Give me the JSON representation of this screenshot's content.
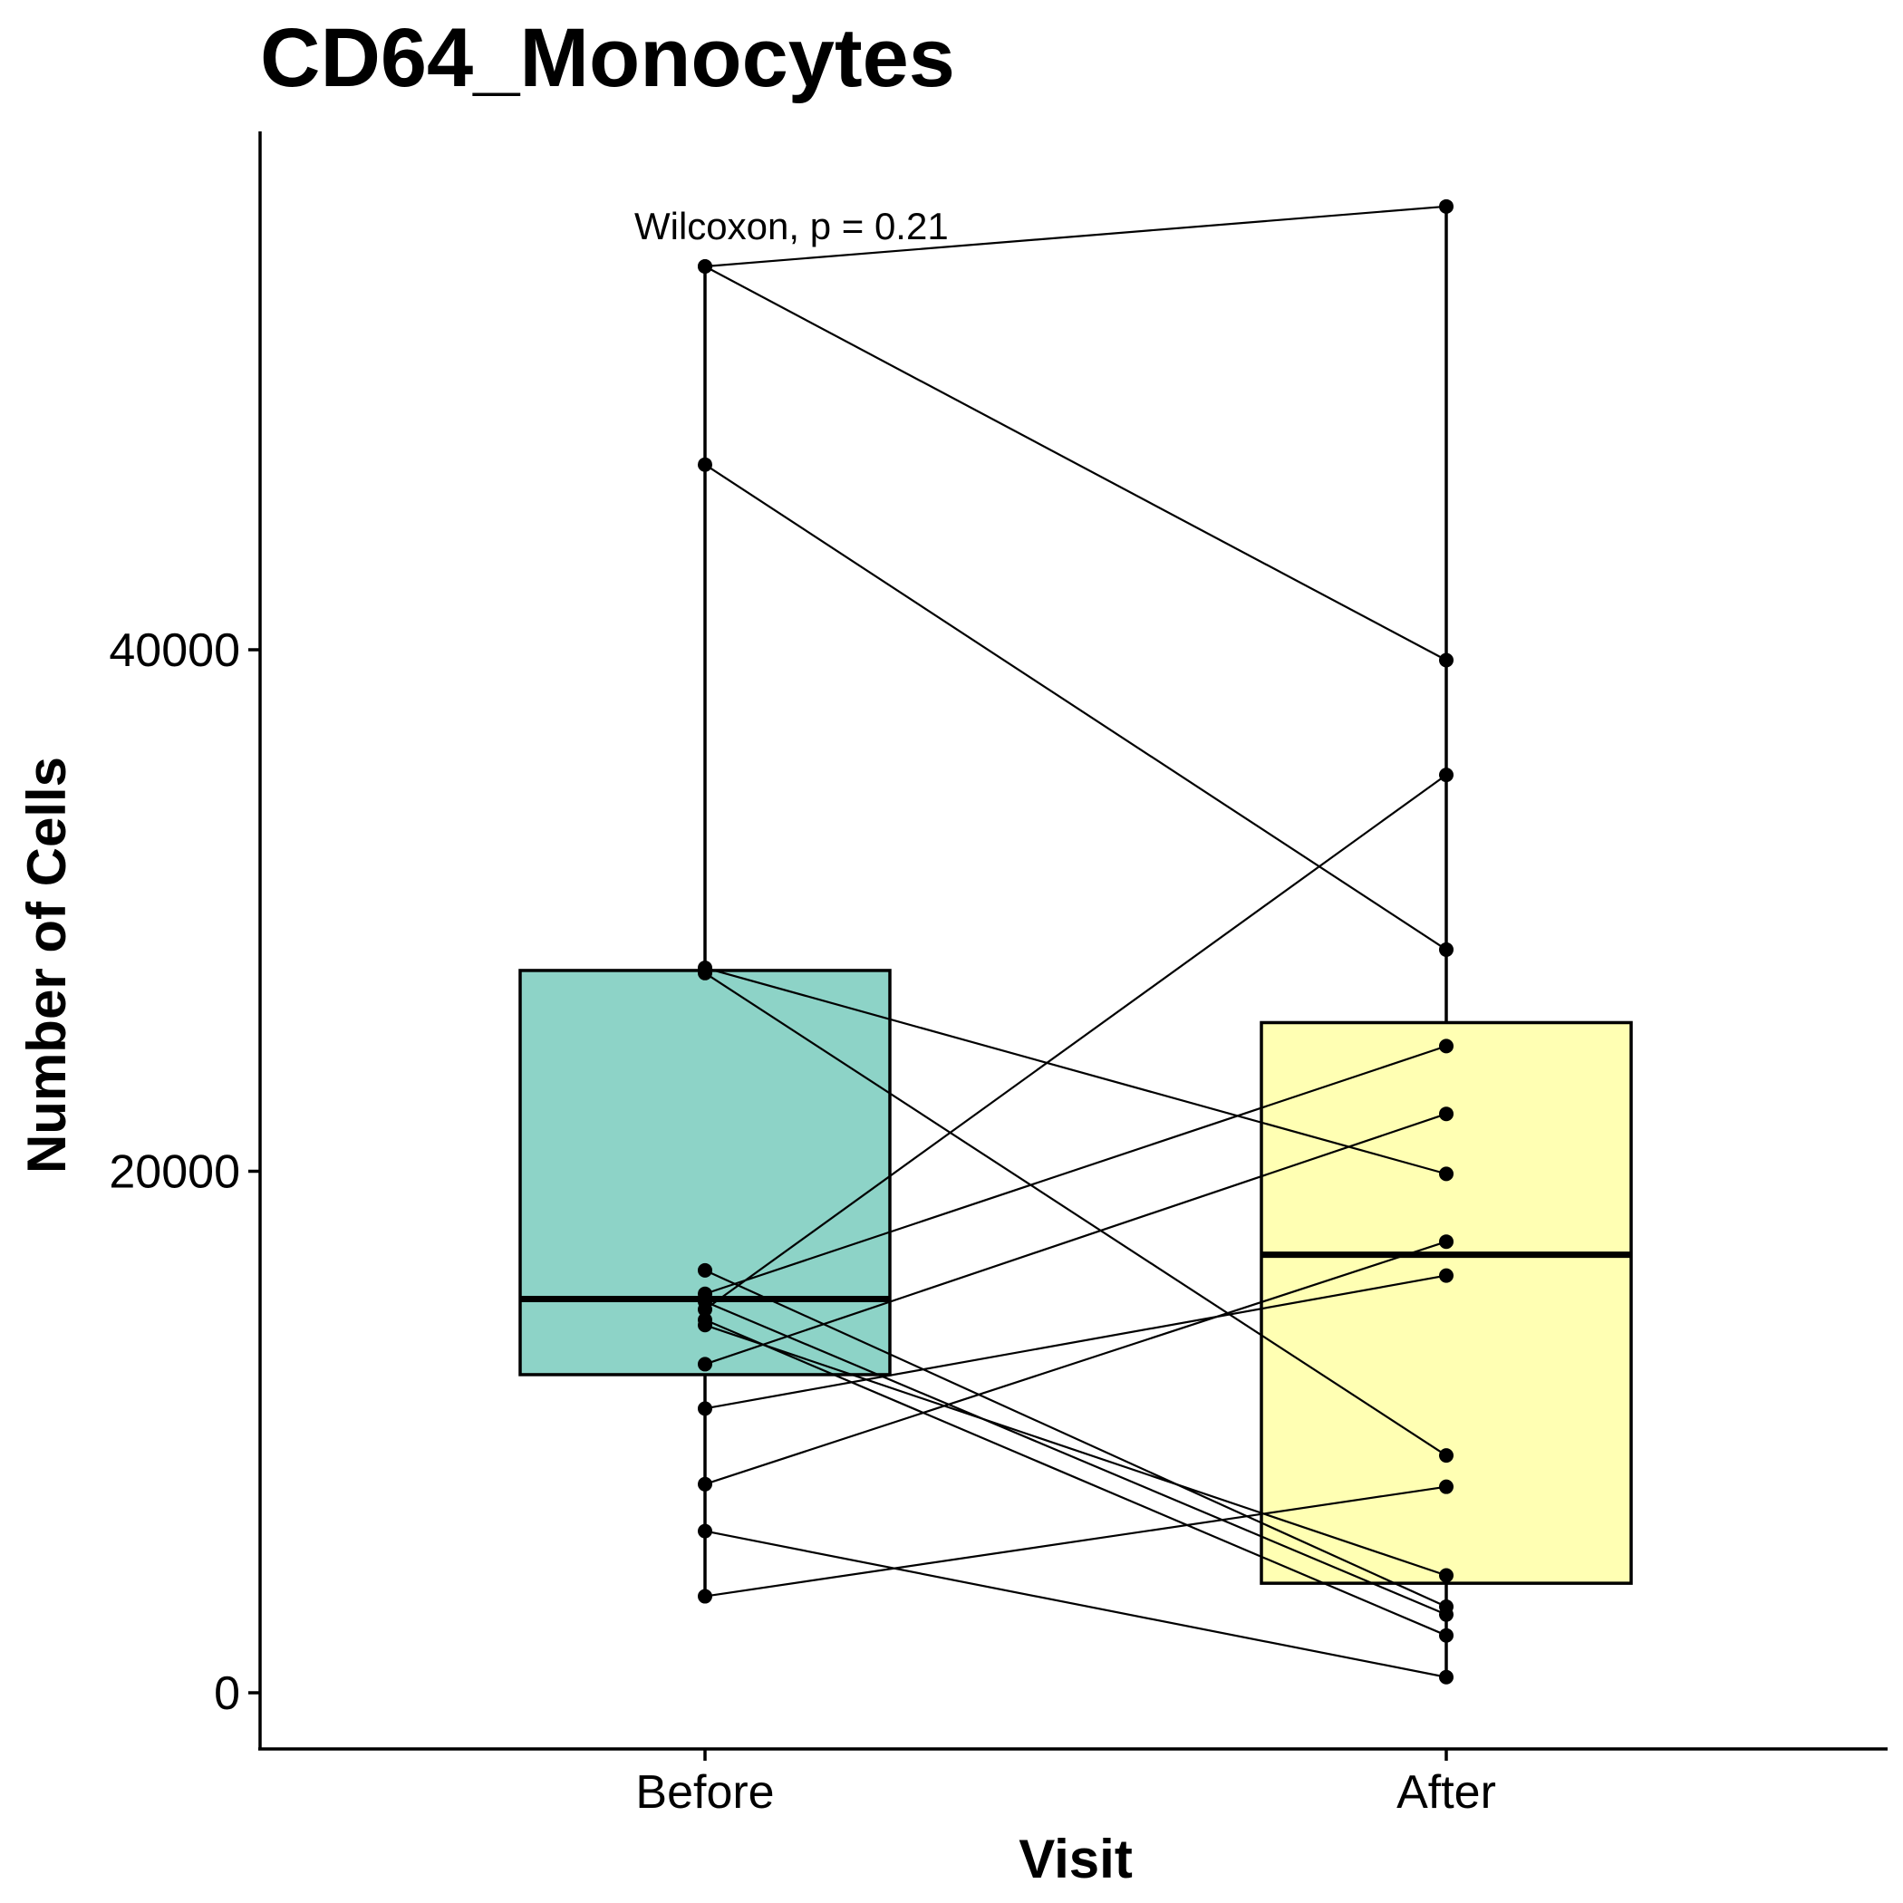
{
  "chart_data": {
    "type": "boxplot",
    "title": "CD64_Monocytes",
    "xlabel": "Visit",
    "ylabel": "Number of Cells",
    "categories": [
      "Before",
      "After"
    ],
    "ylim": [
      -2000,
      59000
    ],
    "yticks": [
      0,
      20000,
      40000
    ],
    "grid": false,
    "legend": "none",
    "colors": {
      "Before": "#8dd3c7",
      "After": "#ffffb3",
      "stroke": "#000000"
    },
    "annotation": "Wilcoxon, p = 0.21",
    "boxes": [
      {
        "category": "Before",
        "q1": 12200,
        "median": 15100,
        "q3": 27700,
        "whisker_low": 3700,
        "whisker_high": 54700
      },
      {
        "category": "After",
        "q1": 4200,
        "median": 16800,
        "q3": 25700,
        "whisker_low": 600,
        "whisker_high": 57000
      }
    ],
    "pairs": [
      {
        "before": 54700,
        "after": 57000
      },
      {
        "before": 54700,
        "after": 39600
      },
      {
        "before": 47100,
        "after": 28500
      },
      {
        "before": 27800,
        "after": 19900
      },
      {
        "before": 27600,
        "after": 9100
      },
      {
        "before": 16200,
        "after": 3300
      },
      {
        "before": 15300,
        "after": 24800
      },
      {
        "before": 15000,
        "after": 3000
      },
      {
        "before": 14700,
        "after": 35200
      },
      {
        "before": 14300,
        "after": 2200
      },
      {
        "before": 14100,
        "after": 4500
      },
      {
        "before": 12600,
        "after": 22200
      },
      {
        "before": 10900,
        "after": 16000
      },
      {
        "before": 8000,
        "after": 17300
      },
      {
        "before": 6200,
        "after": 600
      },
      {
        "before": 3700,
        "after": 7900
      }
    ]
  }
}
